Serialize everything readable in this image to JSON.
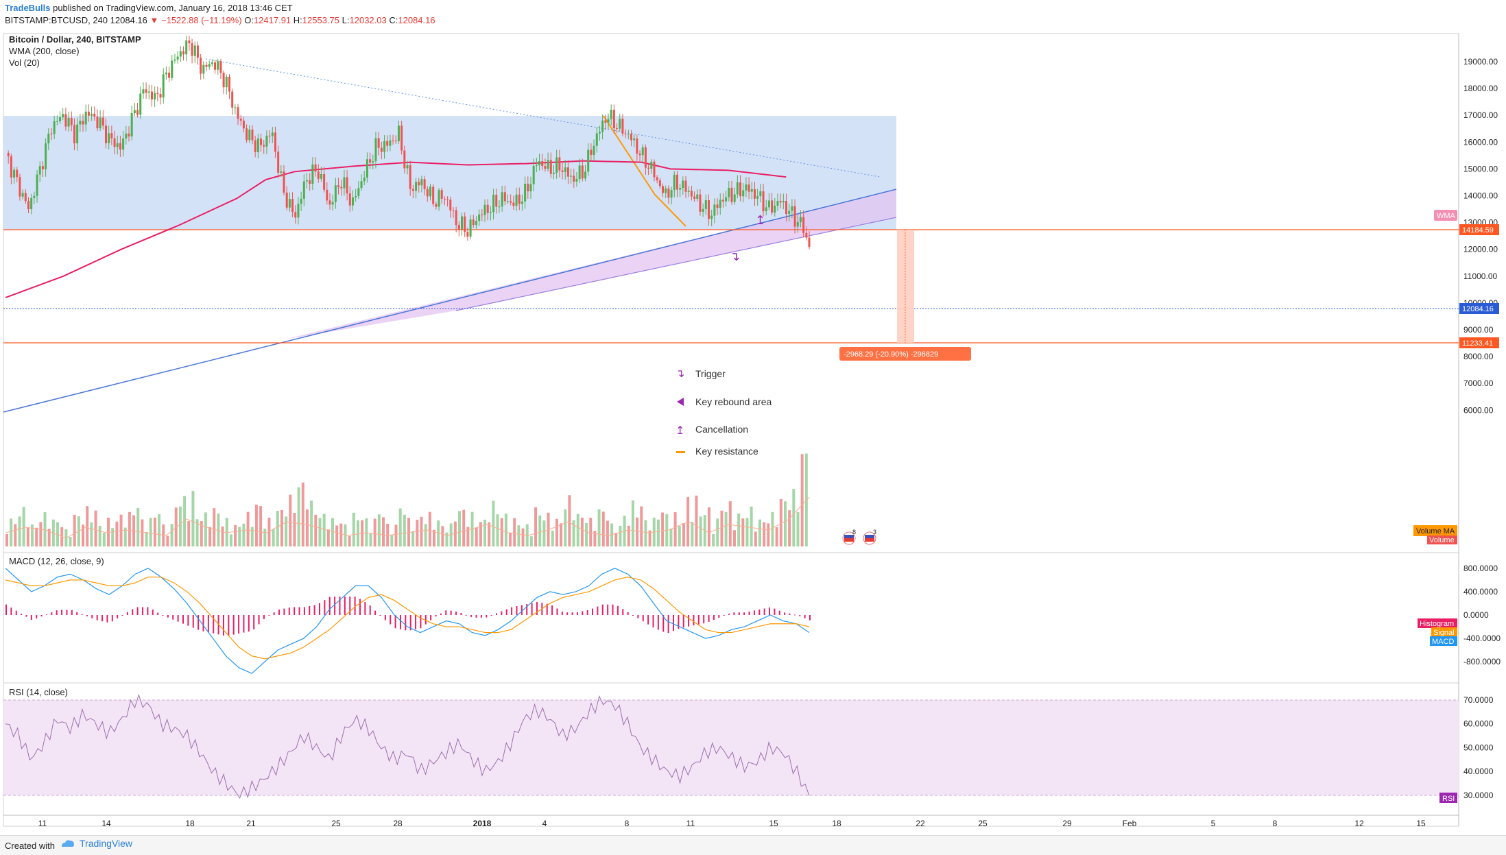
{
  "header": {
    "publisher": "TradeBulls",
    "published_text": "published on TradingView.com, January 16, 2018 13:46 CET",
    "symbol": "BITSTAMP:BTCUSD, 240",
    "last": "12084.16",
    "change": "−1522.88 (−11.19%)",
    "o_label": "O:",
    "o": "12417.91",
    "h_label": "H:",
    "h": "12553.75",
    "l_label": "L:",
    "l": "12032.03",
    "c_label": "C:",
    "c": "12084.16"
  },
  "panes": {
    "main_title": "Bitcoin / Dollar, 240, BITSTAMP",
    "wma_title": "WMA (200, close)",
    "vol_title": "Vol (20)",
    "macd_title": "MACD (12, 26, close, 9)",
    "rsi_title": "RSI (14, close)"
  },
  "price_axis": [
    "19000.00",
    "18000.00",
    "17000.00",
    "16000.00",
    "15000.00",
    "14000.00",
    "13000.00",
    "12000.00",
    "11000.00",
    "10000.00",
    "9000.00",
    "8000.00",
    "7000.00",
    "6000.00"
  ],
  "macd_axis": [
    "800.0000",
    "400.0000",
    "0.0000",
    "-400.0000",
    "-800.0000"
  ],
  "rsi_axis": [
    "70.0000",
    "60.0000",
    "50.0000",
    "40.0000",
    "30.0000"
  ],
  "time_axis": [
    "11",
    "14",
    "18",
    "21",
    "25",
    "28",
    "2018",
    "4",
    "8",
    "11",
    "15",
    "18",
    "22",
    "25",
    "29",
    "Feb",
    "5",
    "8",
    "12",
    "15"
  ],
  "tags": {
    "wma": "WMA",
    "resistance": "14184.59",
    "current": "12084.16",
    "support": "11233.41",
    "volume_ma": "Volume MA",
    "volume": "Volume",
    "histogram": "Histogram",
    "signal": "Signal",
    "macd": "MACD",
    "rsi": "RSI"
  },
  "measure_label": "-2968.29 (-20.90%) -296829",
  "events": {
    "badge1": "8",
    "badge2": "3"
  },
  "legend": [
    {
      "label": "Trigger",
      "icon": "arrow-down-right-icon",
      "color": "#9c27b0"
    },
    {
      "label": "Key rebound area",
      "icon": "triangle-left-icon",
      "color": "#9c27b0"
    },
    {
      "label": "Cancellation",
      "icon": "arrow-up-left-icon",
      "color": "#9c27b0"
    },
    {
      "label": "Key resistance",
      "icon": "dash-icon",
      "color": "#ff9800"
    }
  ],
  "footer": {
    "created_with": "Created with",
    "tradingview": "TradingView"
  },
  "colors": {
    "up": "#4caf50",
    "down": "#ef5350",
    "wma": "#e91e63",
    "resistance": "#ff5722",
    "box": "#c5d8f5",
    "purple": "#9c27b0",
    "rsi_band": "#f3e5f5",
    "macd": "#2196f3",
    "signal": "#ff9800"
  },
  "chart_data": {
    "type": "candlestick",
    "title": "Bitcoin / Dollar, 240, BITSTAMP",
    "ylim": [
      5500,
      19800
    ],
    "resistance_level": 14184.59,
    "support_level": 11233.41,
    "current_price": 12084.16,
    "price_path": [
      [
        0,
        15600
      ],
      [
        2,
        14500
      ],
      [
        4,
        13500
      ],
      [
        6,
        15000
      ],
      [
        8,
        16600
      ],
      [
        10,
        17000
      ],
      [
        12,
        16300
      ],
      [
        14,
        17100
      ],
      [
        16,
        16800
      ],
      [
        18,
        16100
      ],
      [
        20,
        15800
      ],
      [
        22,
        16900
      ],
      [
        24,
        18000
      ],
      [
        26,
        17600
      ],
      [
        28,
        18600
      ],
      [
        30,
        19300
      ],
      [
        32,
        19700
      ],
      [
        34,
        18700
      ],
      [
        36,
        19000
      ],
      [
        38,
        18300
      ],
      [
        40,
        17000
      ],
      [
        42,
        16200
      ],
      [
        44,
        15800
      ],
      [
        46,
        16400
      ],
      [
        48,
        14200
      ],
      [
        50,
        13200
      ],
      [
        52,
        14600
      ],
      [
        54,
        15000
      ],
      [
        56,
        13600
      ],
      [
        58,
        14600
      ],
      [
        60,
        13700
      ],
      [
        62,
        14800
      ],
      [
        64,
        15800
      ],
      [
        66,
        15900
      ],
      [
        68,
        16300
      ],
      [
        70,
        14300
      ],
      [
        72,
        14500
      ],
      [
        74,
        13800
      ],
      [
        76,
        14000
      ],
      [
        78,
        13000
      ],
      [
        80,
        12700
      ],
      [
        82,
        13300
      ],
      [
        84,
        13600
      ],
      [
        86,
        13900
      ],
      [
        88,
        13700
      ],
      [
        90,
        14100
      ],
      [
        92,
        15300
      ],
      [
        94,
        15000
      ],
      [
        96,
        15100
      ],
      [
        98,
        14600
      ],
      [
        100,
        14900
      ],
      [
        102,
        16100
      ],
      [
        104,
        17000
      ],
      [
        106,
        16600
      ],
      [
        108,
        16200
      ],
      [
        110,
        15500
      ],
      [
        112,
        14900
      ],
      [
        114,
        14000
      ],
      [
        116,
        14500
      ],
      [
        118,
        14200
      ],
      [
        120,
        13700
      ],
      [
        122,
        13300
      ],
      [
        124,
        13900
      ],
      [
        126,
        14100
      ],
      [
        128,
        14300
      ],
      [
        130,
        14000
      ],
      [
        132,
        13500
      ],
      [
        134,
        13800
      ],
      [
        136,
        13300
      ],
      [
        138,
        12800
      ],
      [
        139,
        12084
      ]
    ],
    "volume_path": [
      5,
      7,
      4,
      6,
      5,
      3,
      6,
      7,
      4,
      5,
      6,
      8,
      5,
      7,
      4,
      9,
      10,
      6,
      7,
      5,
      4,
      6,
      8,
      5,
      7,
      9,
      12,
      8,
      6,
      5,
      4,
      6,
      5,
      7,
      4,
      8,
      5,
      6,
      5,
      4,
      7,
      6,
      5,
      8,
      6,
      5,
      4,
      7,
      6,
      5,
      9,
      6,
      5,
      7,
      4,
      6,
      8,
      5,
      7,
      6,
      5,
      9,
      7,
      5,
      8,
      6,
      7,
      5,
      6,
      9,
      10,
      18
    ],
    "wma_path": [
      [
        0,
        10200
      ],
      [
        10,
        11000
      ],
      [
        20,
        12000
      ],
      [
        30,
        12900
      ],
      [
        40,
        13900
      ],
      [
        45,
        14600
      ],
      [
        50,
        14900
      ],
      [
        60,
        15100
      ],
      [
        70,
        15250
      ],
      [
        80,
        15150
      ],
      [
        90,
        15200
      ],
      [
        100,
        15300
      ],
      [
        110,
        15250
      ],
      [
        115,
        15000
      ],
      [
        125,
        14950
      ],
      [
        135,
        14700
      ]
    ],
    "macd_range": [
      -1000,
      1100
    ],
    "macd_path": [
      800,
      600,
      400,
      500,
      650,
      700,
      600,
      450,
      350,
      500,
      700,
      800,
      650,
      450,
      200,
      -100,
      -400,
      -700,
      -900,
      -1000,
      -800,
      -600,
      -500,
      -400,
      -200,
      100,
      300,
      500,
      500,
      300,
      0,
      -200,
      -300,
      -200,
      -100,
      -150,
      -300,
      -350,
      -250,
      -100,
      100,
      300,
      400,
      350,
      400,
      500,
      700,
      800,
      700,
      500,
      200,
      -100,
      -200,
      -300,
      -400,
      -350,
      -250,
      -200,
      -100,
      0,
      -100,
      -150,
      -300
    ],
    "signal_path": [
      600,
      550,
      500,
      500,
      550,
      600,
      600,
      550,
      500,
      500,
      550,
      650,
      650,
      550,
      400,
      200,
      -50,
      -300,
      -550,
      -700,
      -750,
      -700,
      -650,
      -550,
      -400,
      -250,
      -50,
      150,
      300,
      350,
      250,
      100,
      -50,
      -150,
      -200,
      -200,
      -250,
      -300,
      -300,
      -250,
      -100,
      50,
      200,
      300,
      350,
      400,
      500,
      600,
      650,
      600,
      450,
      250,
      50,
      -100,
      -250,
      -300,
      -300,
      -250,
      -200,
      -150,
      -150,
      -150,
      -200
    ],
    "rsi_range": [
      25,
      75
    ],
    "rsi_path": [
      60,
      55,
      45,
      52,
      62,
      58,
      64,
      60,
      56,
      62,
      70,
      68,
      60,
      58,
      55,
      48,
      40,
      35,
      30,
      33,
      37,
      42,
      48,
      55,
      50,
      45,
      56,
      62,
      58,
      50,
      45,
      48,
      40,
      44,
      48,
      52,
      45,
      40,
      44,
      52,
      62,
      66,
      62,
      55,
      58,
      65,
      70,
      68,
      60,
      50,
      45,
      40,
      38,
      42,
      48,
      50,
      46,
      42,
      44,
      50,
      48,
      40,
      30
    ]
  }
}
